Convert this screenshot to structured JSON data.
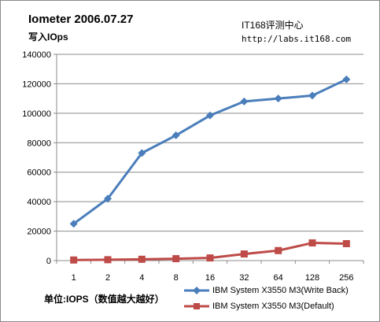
{
  "header": {
    "title": "Iometer 2006.07.27",
    "subtitle": "写入IOps",
    "source": "IT168评测中心",
    "url": "http://labs.it168.com"
  },
  "footer": {
    "unit_note": "单位:IOPS（数值越大越好）"
  },
  "chart_data": {
    "type": "line",
    "title": "Iometer 2006.07.27",
    "subtitle": "写入IOps",
    "xlabel": "",
    "ylabel": "",
    "categories": [
      "1",
      "2",
      "4",
      "8",
      "16",
      "32",
      "64",
      "128",
      "256"
    ],
    "ylim": [
      0,
      140000
    ],
    "yticks": [
      0,
      20000,
      40000,
      60000,
      80000,
      100000,
      120000,
      140000
    ],
    "grid": true,
    "legend": "bottom-right",
    "series": [
      {
        "name": "IBM System X3550 M3(Write Back)",
        "color": "#4a7ebb",
        "marker": "diamond",
        "values": [
          25000,
          42000,
          73000,
          85000,
          98500,
          108000,
          110000,
          112000,
          123000
        ]
      },
      {
        "name": "IBM System X3550 M3(Default)",
        "color": "#be4b48",
        "marker": "square",
        "values": [
          400,
          600,
          900,
          1300,
          1800,
          4500,
          6800,
          12000,
          11500
        ]
      }
    ]
  }
}
